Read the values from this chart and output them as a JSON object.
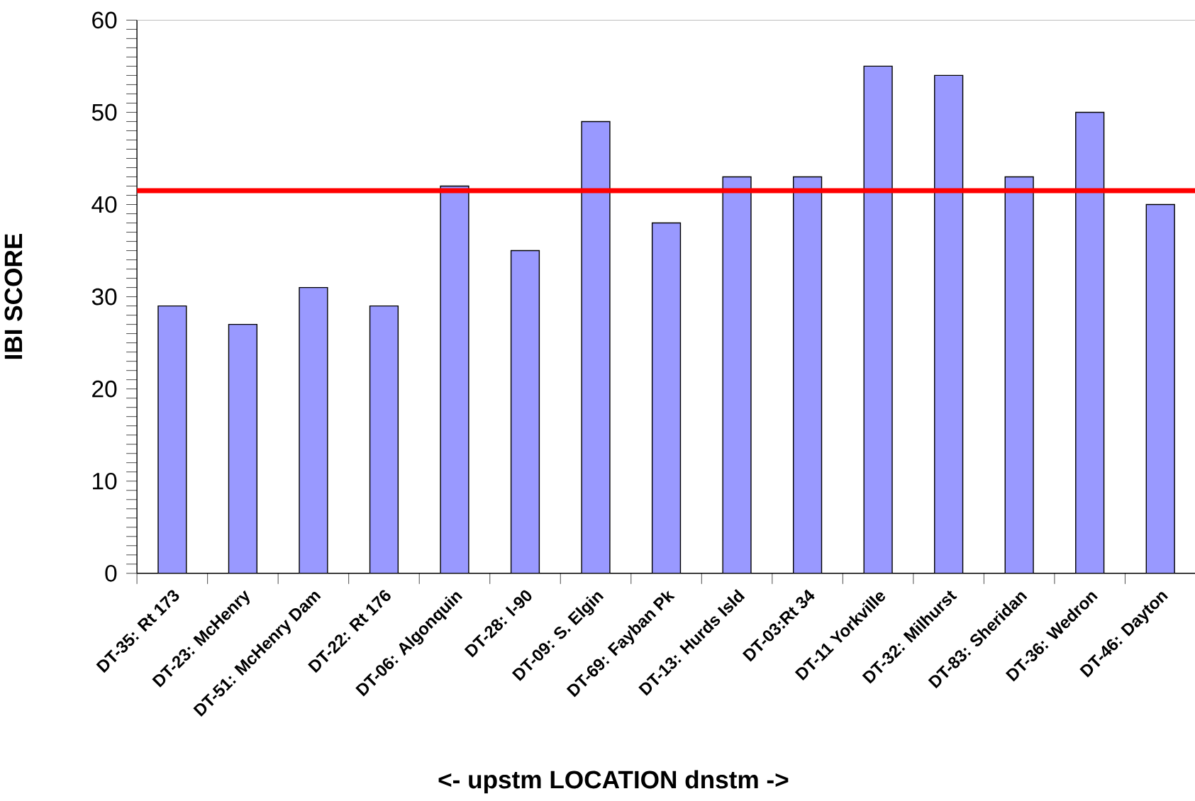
{
  "chart_data": {
    "type": "bar",
    "xlabel": "<- upstm  LOCATION dnstm ->",
    "ylabel": "IBI SCORE",
    "categories": [
      "DT-35: Rt 173",
      "DT-23: McHenry",
      "DT-51: McHenry Dam",
      "DT-22: Rt 176",
      "DT-06: Algonquin",
      "DT-28: I-90",
      "DT-09: S. Elgin",
      "DT-69: Fayban Pk",
      "DT-13: Hurds Isld",
      "DT-03:Rt 34",
      "DT-11 Yorkville",
      "DT-32: Milhurst",
      "DT-83: Sheridan",
      "DT-36: Wedron",
      "DT-46: Dayton"
    ],
    "values": [
      29,
      27,
      31,
      29,
      42,
      35,
      49,
      38,
      43,
      43,
      55,
      54,
      43,
      50,
      40
    ],
    "color": "#9999ff",
    "ylim": [
      0,
      60
    ],
    "yticks": [
      0,
      10,
      20,
      30,
      40,
      50,
      60
    ],
    "ref_lines": [
      {
        "axis": "y",
        "value": 41.5,
        "color": "#ff0000"
      }
    ]
  }
}
